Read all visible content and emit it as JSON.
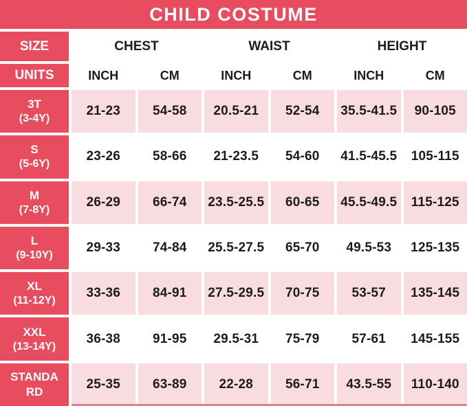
{
  "title": "CHILD COSTUME",
  "colors": {
    "accent_red": "#e84c5f",
    "light_pink": "#f9dce0",
    "bottom_strip": "#d4838f",
    "text_black": "#1b1b1b",
    "white": "#ffffff"
  },
  "table": {
    "size_header": "SIZE",
    "units_header": "UNITS",
    "measure_groups": [
      {
        "label": "CHEST"
      },
      {
        "label": "WAIST"
      },
      {
        "label": "HEIGHT"
      }
    ],
    "unit_columns": [
      "INCH",
      "CM",
      "INCH",
      "CM",
      "INCH",
      "CM"
    ],
    "rows": [
      {
        "size": "3T",
        "age": "(3-4Y)",
        "values": [
          "21-23",
          "54-58",
          "20.5-21",
          "52-54",
          "35.5-41.5",
          "90-105"
        ]
      },
      {
        "size": "S",
        "age": "(5-6Y)",
        "values": [
          "23-26",
          "58-66",
          "21-23.5",
          "54-60",
          "41.5-45.5",
          "105-115"
        ]
      },
      {
        "size": "M",
        "age": "(7-8Y)",
        "values": [
          "26-29",
          "66-74",
          "23.5-25.5",
          "60-65",
          "45.5-49.5",
          "115-125"
        ]
      },
      {
        "size": "L",
        "age": "(9-10Y)",
        "values": [
          "29-33",
          "74-84",
          "25.5-27.5",
          "65-70",
          "49.5-53",
          "125-135"
        ]
      },
      {
        "size": "XL",
        "age": "(11-12Y)",
        "values": [
          "33-36",
          "84-91",
          "27.5-29.5",
          "70-75",
          "53-57",
          "135-145"
        ]
      },
      {
        "size": "XXL",
        "age": "(13-14Y)",
        "values": [
          "36-38",
          "91-95",
          "29.5-31",
          "75-79",
          "57-61",
          "145-155"
        ]
      },
      {
        "size": "STANDARD",
        "age": "",
        "values": [
          "25-35",
          "63-89",
          "22-28",
          "56-71",
          "43.5-55",
          "110-140"
        ]
      }
    ]
  },
  "chart_data": {
    "type": "table",
    "title": "CHILD COSTUME",
    "column_groups": [
      "CHEST",
      "WAIST",
      "HEIGHT"
    ],
    "columns": [
      "SIZE",
      "CHEST INCH",
      "CHEST CM",
      "WAIST INCH",
      "WAIST CM",
      "HEIGHT INCH",
      "HEIGHT CM"
    ],
    "rows": [
      [
        "3T (3-4Y)",
        "21-23",
        "54-58",
        "20.5-21",
        "52-54",
        "35.5-41.5",
        "90-105"
      ],
      [
        "S (5-6Y)",
        "23-26",
        "58-66",
        "21-23.5",
        "54-60",
        "41.5-45.5",
        "105-115"
      ],
      [
        "M (7-8Y)",
        "26-29",
        "66-74",
        "23.5-25.5",
        "60-65",
        "45.5-49.5",
        "115-125"
      ],
      [
        "L (9-10Y)",
        "29-33",
        "74-84",
        "25.5-27.5",
        "65-70",
        "49.5-53",
        "125-135"
      ],
      [
        "XL (11-12Y)",
        "33-36",
        "84-91",
        "27.5-29.5",
        "70-75",
        "53-57",
        "135-145"
      ],
      [
        "XXL (13-14Y)",
        "36-38",
        "91-95",
        "29.5-31",
        "75-79",
        "57-61",
        "145-155"
      ],
      [
        "STANDARD",
        "25-35",
        "63-89",
        "22-28",
        "56-71",
        "43.5-55",
        "110-140"
      ]
    ]
  }
}
